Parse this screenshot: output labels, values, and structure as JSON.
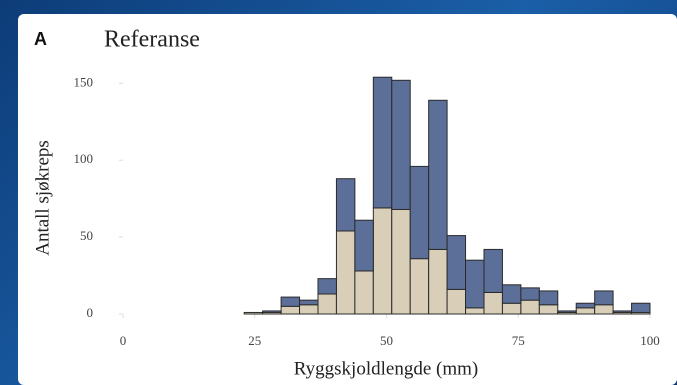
{
  "chart_data": {
    "type": "histogram",
    "panel_label": "A",
    "title": "Referanse",
    "xlabel": "Ryggskjoldlengde (mm)",
    "ylabel": "Antall sjøkreps",
    "bins": [
      2,
      5.5,
      9,
      12.5,
      16,
      19.5,
      23,
      26.5,
      30,
      33.5,
      37,
      40.5,
      44,
      47.5,
      51,
      54.5,
      58,
      61.5,
      65,
      68.5,
      72,
      75.5,
      79,
      82.5,
      86,
      89.5,
      93,
      96.5,
      100
    ],
    "series": [
      {
        "color": "#d9cfb8",
        "values": [
          0,
          0,
          0,
          0,
          0,
          0,
          1,
          1,
          5,
          6,
          13,
          54,
          28,
          69,
          68,
          36,
          42,
          16,
          4,
          14,
          7,
          9,
          6,
          1,
          4,
          6,
          1,
          1
        ]
      },
      {
        "color": "#5b6f99",
        "values": [
          0,
          0,
          0,
          0,
          0,
          0,
          0,
          1,
          6,
          3,
          10,
          34,
          33,
          85,
          84,
          60,
          97,
          35,
          31,
          28,
          12,
          8,
          9,
          1,
          3,
          9,
          1,
          6
        ]
      }
    ],
    "xlim": [
      0,
      100
    ],
    "xticks": [
      0,
      25,
      50,
      75,
      100
    ],
    "ylim": [
      0,
      160
    ],
    "yticks": [
      0,
      50,
      100,
      150
    ]
  }
}
